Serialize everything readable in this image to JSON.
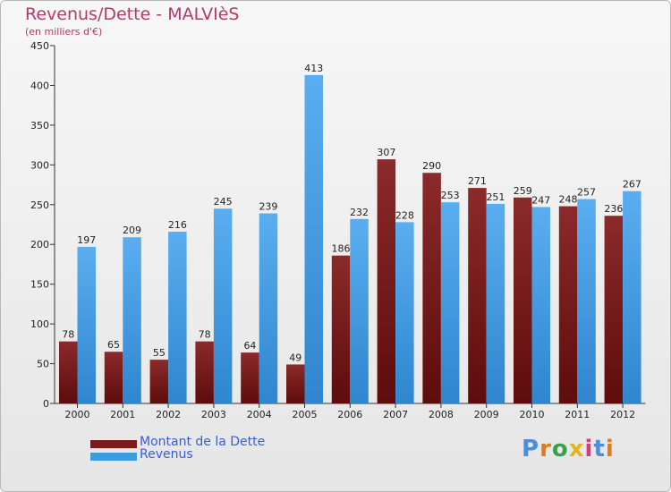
{
  "header": {
    "title": "Revenus/Dette - MALVIèS",
    "subtitle": "(en milliers d'€)"
  },
  "legend": {
    "items": [
      {
        "label": "Montant de la Dette",
        "color": "#7a1a1a"
      },
      {
        "label": "Revenus",
        "color": "#3d9be0"
      }
    ]
  },
  "logo": {
    "text": "Proxiti"
  },
  "colors": {
    "dette_top": "#8b2a2a",
    "dette_bottom": "#5e0c0c",
    "revenus_top": "#5aaef0",
    "revenus_bottom": "#2f86cf",
    "title": "#b23a6a",
    "legend_text": "#3a5bd9"
  },
  "chart_data": {
    "type": "bar",
    "categories": [
      "2000",
      "2001",
      "2002",
      "2003",
      "2004",
      "2005",
      "2006",
      "2007",
      "2008",
      "2009",
      "2010",
      "2011",
      "2012"
    ],
    "series": [
      {
        "name": "Montant de la Dette",
        "values": [
          78,
          65,
          55,
          78,
          64,
          49,
          186,
          307,
          290,
          271,
          259,
          248,
          236
        ]
      },
      {
        "name": "Revenus",
        "values": [
          197,
          209,
          216,
          245,
          239,
          413,
          232,
          228,
          253,
          251,
          247,
          257,
          267
        ]
      }
    ],
    "ylim": [
      0,
      450
    ],
    "yticks": [
      0,
      50,
      100,
      150,
      200,
      250,
      300,
      350,
      400,
      450
    ],
    "grid": false,
    "data_labels": true
  }
}
